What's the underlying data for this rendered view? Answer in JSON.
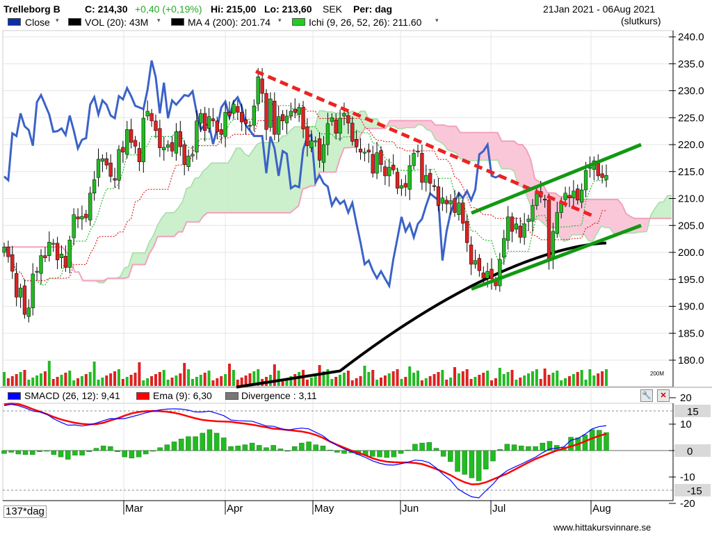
{
  "header": {
    "ticker": "Trelleborg B",
    "close": "C: 214,30",
    "change": "+0,40 (+0,19%)",
    "high": "Hi: 215,00",
    "low": "Lo: 213,60",
    "currency": "SEK",
    "period": "Per: dag",
    "date_range": "21Jan 2021 - 06Aug 2021",
    "price_type": "(slutkurs)"
  },
  "legend_top": [
    {
      "label": "Close",
      "color": "#0b2ea8"
    },
    {
      "label": "VOL (20): 43M",
      "color": "#000000"
    },
    {
      "label": "MA 4 (200): 201.74",
      "color": "#000000"
    },
    {
      "label": "Ichi (9, 26, 52, 26): 211.60",
      "color": "#22cc22"
    }
  ],
  "legend_bottom": [
    {
      "label": "SMACD (26, 12): 9,41",
      "color": "#0000ff"
    },
    {
      "label": "Ema (9): 6,30",
      "color": "#ff0000"
    },
    {
      "label": "Divergence : 3,11",
      "color": "#777777"
    }
  ],
  "colors": {
    "up": "#22bb22",
    "down": "#dd2222",
    "close_line": "#3a62c8",
    "ma": "#000000",
    "trend_down": "#ee2222",
    "trend_up": "#119911",
    "cloud_green": "#ccefcc",
    "cloud_pink": "#f9c7d8"
  },
  "footer": {
    "period_label": "137*dag",
    "site": "www.hittakursvinnare.se"
  },
  "volume_scale_label": "200M",
  "chart_data": [
    {
      "type": "candlestick",
      "title": "Trelleborg B",
      "y_axis": {
        "range": [
          175,
          242
        ],
        "ticks": [
          "240.0",
          "235.0",
          "230.0",
          "225.0",
          "220.0",
          "215.0",
          "210.0",
          "205.0",
          "200.0",
          "195.0",
          "190.0",
          "185.0",
          "180.0"
        ]
      },
      "x_axis": {
        "ticks": [
          "Mar",
          "Apr",
          "May",
          "Jun",
          "Jul",
          "Aug"
        ]
      },
      "close": [
        201.0,
        199.2,
        196.5,
        191.7,
        193.4,
        188.5,
        189.7,
        196.0,
        196.5,
        199.4,
        199.0,
        201.9,
        201.7,
        198.6,
        199.7,
        197.2,
        202.3,
        207.0,
        206.2,
        206.7,
        206.4,
        211.0,
        213.5,
        217.3,
        217.4,
        216.2,
        214.1,
        213.4,
        219.1,
        218.6,
        222.8,
        220.4,
        219.7,
        216.8,
        224.9,
        226.2,
        224.4,
        222.6,
        219.4,
        219.5,
        220.0,
        218.8,
        222.4,
        219.6,
        216.3,
        217.9,
        218.2,
        224.4,
        225.8,
        222.6,
        225.2,
        224.4,
        222.4,
        221.9,
        226.0,
        225.4,
        227.5,
        226.0,
        224.2,
        223.9,
        223.6,
        227.2,
        232.6,
        229.5,
        222.8,
        228.5,
        221.9,
        225.2,
        224.4,
        225.3,
        226.2,
        226.0,
        226.9,
        222.9,
        219.8,
        220.7,
        220.7,
        217.1,
        220.0,
        223.9,
        225.0,
        222.1,
        224.9,
        225.8,
        224.0,
        220.6,
        219.6,
        218.6,
        218.6,
        218.6,
        214.7,
        218.5,
        216.3,
        214.2,
        215.8,
        215.3,
        211.9,
        212.4,
        212.1,
        216.1,
        218.4,
        218.8,
        213.0,
        214.3,
        212.8,
        212.2,
        208.7,
        210.1,
        209.0,
        209.6,
        207.4,
        209.2,
        205.4,
        201.8,
        197.8,
        198.5,
        196.6,
        195.2,
        196.5,
        195.1,
        193.8,
        198.7,
        202.6,
        206.6,
        203.9,
        205.3,
        202.8,
        205.3,
        206.2,
        208.7,
        210.9,
        210.3,
        209.7,
        198.5,
        203.9,
        207.4,
        209.4,
        211.0,
        210.1,
        211.4,
        209.7,
        211.6,
        215.2,
        215.8,
        217.0,
        214.2,
        213.9,
        214.3
      ],
      "ma200_range": [
        178.0,
        201.74
      ],
      "trendlines": [
        {
          "name": "resistance",
          "from": [
            "Apr",
            233.6
          ],
          "to": [
            "Jul",
            206.6
          ],
          "style": "dashed"
        },
        {
          "name": "channel-upper",
          "from": [
            "Jun",
            207.3
          ],
          "to": [
            "Aug",
            220.0
          ],
          "style": "solid"
        },
        {
          "name": "channel-lower",
          "from": [
            "Jun",
            193.2
          ],
          "to": [
            "Aug",
            205.0
          ],
          "style": "solid"
        }
      ]
    },
    {
      "type": "line+bar",
      "title": "SMACD",
      "y_axis": {
        "range": [
          -22,
          22
        ],
        "ticks": [
          "20",
          "10",
          "0",
          "-10",
          "-20"
        ],
        "markers": [
          15,
          0,
          -15
        ]
      },
      "smacd": [
        17.0,
        17.5,
        17.0,
        16.1,
        15.0,
        14.6,
        13.8,
        12.0,
        10.7,
        9.6,
        9.7,
        9.3,
        9.7,
        10.4,
        11.3,
        12.1,
        12.0,
        12.1,
        12.8,
        13.5,
        14.3,
        14.9,
        15.4,
        15.7,
        15.8,
        15.7,
        15.3,
        14.6,
        14.6,
        14.9,
        14.1,
        13.2,
        11.6,
        11.3,
        11.2,
        11.1,
        10.2,
        9.3,
        9.2,
        8.4,
        7.7,
        8.2,
        8.5,
        8.2,
        6.9,
        5.6,
        3.5,
        1.9,
        0.6,
        -0.4,
        -1.5,
        -2.6,
        -3.9,
        -4.8,
        -5.4,
        -5.5,
        -5.0,
        -4.4,
        -3.6,
        -3.8,
        -4.6,
        -6.6,
        -9.1,
        -11.2,
        -14.4,
        -16.1,
        -17.5,
        -17.9,
        -15.2,
        -12.7,
        -9.6,
        -7.6,
        -6.3,
        -5.1,
        -3.8,
        -2.5,
        -0.8,
        0.6,
        0.9,
        1.4,
        3.9,
        4.6,
        6.2,
        8.2,
        9.1,
        9.4
      ],
      "ema9": [
        17.5,
        17.8,
        17.6,
        16.8,
        15.7,
        14.8,
        13.8,
        12.7,
        11.8,
        11.1,
        10.5,
        10.1,
        9.9,
        10.0,
        10.5,
        11.4,
        12.2,
        13.2,
        14.1,
        14.6,
        14.9,
        15.0,
        14.9,
        14.7,
        14.3,
        13.7,
        12.9,
        12.2,
        11.6,
        11.3,
        11.1,
        11.0,
        10.9,
        10.5,
        10.2,
        9.8,
        9.3,
        8.8,
        8.3,
        8.1,
        7.8,
        7.5,
        7.2,
        6.7,
        5.9,
        4.8,
        3.4,
        2.2,
        1.1,
        0.0,
        -0.8,
        -1.8,
        -2.9,
        -3.7,
        -4.2,
        -4.4,
        -4.5,
        -4.5,
        -4.7,
        -5.1,
        -6.0,
        -7.0,
        -8.1,
        -9.3,
        -10.8,
        -12.0,
        -12.8,
        -12.7,
        -12.0,
        -10.9,
        -9.8,
        -8.7,
        -7.3,
        -5.9,
        -4.5,
        -3.2,
        -2.1,
        -1.0,
        0.0,
        0.8,
        1.6,
        2.4,
        3.5,
        4.6,
        5.6,
        6.3
      ],
      "divergence_last": 3.11
    }
  ]
}
